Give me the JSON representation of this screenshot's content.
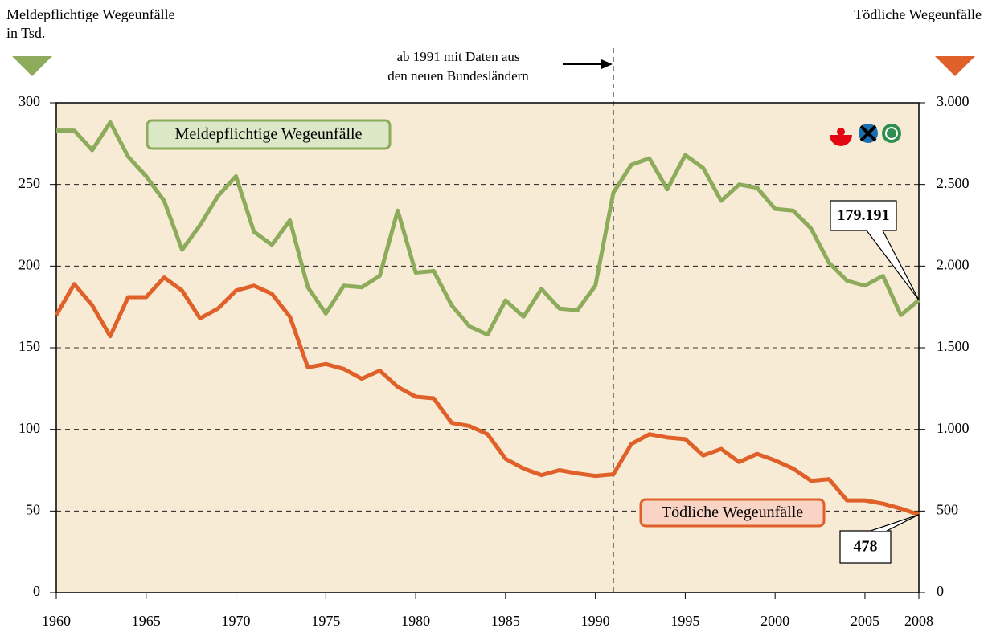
{
  "chart_data": {
    "type": "line",
    "y_label": [
      "Meldepflichtige Wegeunfälle",
      "in Tsd."
    ],
    "y2_label": "Tödliche Wegeunfälle",
    "annotation": {
      "x": 1991,
      "lines": [
        "ab 1991 mit Daten aus",
        "den neuen Bundesländern"
      ]
    },
    "x": [
      1960,
      1961,
      1962,
      1963,
      1964,
      1965,
      1966,
      1967,
      1968,
      1969,
      1970,
      1971,
      1972,
      1973,
      1974,
      1975,
      1976,
      1977,
      1978,
      1979,
      1980,
      1981,
      1982,
      1983,
      1984,
      1985,
      1986,
      1987,
      1988,
      1989,
      1990,
      1991,
      1992,
      1993,
      1994,
      1995,
      1996,
      1997,
      1998,
      1999,
      2000,
      2001,
      2002,
      2003,
      2004,
      2005,
      2006,
      2007,
      2008
    ],
    "series": [
      {
        "name": "Meldepflichtige Wegeunfälle",
        "color": "#8cab5b",
        "values": [
          283,
          283,
          271,
          288,
          267,
          255,
          240,
          210,
          225,
          243,
          255,
          221,
          213,
          228,
          187,
          171,
          188,
          187,
          194,
          234,
          196,
          197,
          176,
          163,
          158,
          179,
          169,
          186,
          174,
          173,
          188,
          245,
          262,
          266,
          247,
          268,
          260,
          240,
          250,
          248,
          235,
          234,
          223,
          202,
          191,
          188,
          194,
          170,
          179.191
        ]
      },
      {
        "name": "Tödliche Wegeunfälle",
        "color": "#e0602a",
        "axis": "y2",
        "values": [
          1700,
          1890,
          1760,
          1570,
          1810,
          1810,
          1930,
          1850,
          1680,
          1740,
          1850,
          1880,
          1830,
          1690,
          1380,
          1400,
          1370,
          1310,
          1360,
          1260,
          1200,
          1190,
          1040,
          1020,
          970,
          820,
          760,
          720,
          750,
          730,
          715,
          725,
          910,
          970,
          950,
          940,
          840,
          880,
          800,
          850,
          810,
          760,
          685,
          695,
          565,
          565,
          545,
          515,
          478
        ]
      }
    ],
    "xlim": [
      1960,
      2008
    ],
    "xticks": [
      1960,
      1965,
      1970,
      1975,
      1980,
      1985,
      1990,
      1995,
      2000,
      2005,
      2008
    ],
    "ylim": [
      0,
      300
    ],
    "yticks": [
      0,
      50,
      100,
      150,
      200,
      250,
      300
    ],
    "y2lim": [
      0,
      3000
    ],
    "y2ticks": [
      0,
      500,
      {
        "value": 1000,
        "label": "1.000"
      },
      {
        "value": 1500,
        "label": "1.500"
      },
      {
        "value": 2000,
        "label": "2.000"
      },
      {
        "value": 2500,
        "label": "2.500"
      },
      {
        "value": 3000,
        "label": "3.000"
      }
    ],
    "grid": true
  }
}
